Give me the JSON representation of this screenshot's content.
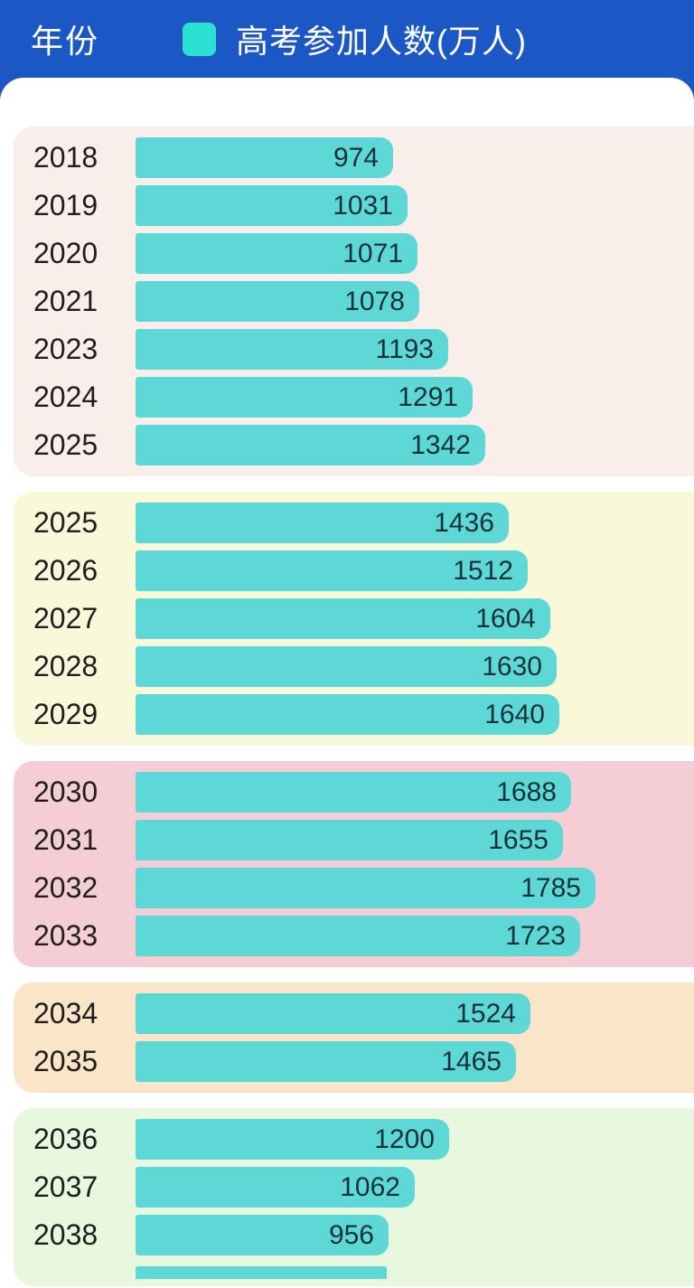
{
  "header": {
    "year_label": "年份",
    "series_label": "高考参加人数(万人)",
    "bg_color": "#1b58c5",
    "swatch_color": "#2de1d2"
  },
  "colors": {
    "bar": "#5ed8d6",
    "bar_value_text": "#15323a",
    "year_text": "#1e1e1e",
    "content_bg": "#ffffff"
  },
  "chart_data": {
    "type": "bar",
    "orientation": "horizontal",
    "title": "高考参加人数(万人)",
    "xlabel": "高考参加人数(万人)",
    "ylabel": "年份",
    "unit": "万人",
    "legend_position": "top-header",
    "grid": false,
    "value_labels": "inside-bar-right",
    "max_scale_value": 1785,
    "categories": [
      "2018",
      "2019",
      "2020",
      "2021",
      "2023",
      "2024",
      "2025",
      "2025",
      "2026",
      "2027",
      "2028",
      "2029",
      "2030",
      "2031",
      "2032",
      "2033",
      "2034",
      "2035",
      "2036",
      "2037",
      "2038"
    ],
    "values": [
      974,
      1031,
      1071,
      1078,
      1193,
      1291,
      1342,
      1436,
      1512,
      1604,
      1630,
      1640,
      1688,
      1655,
      1785,
      1723,
      1524,
      1465,
      1200,
      1062,
      956
    ],
    "groups": [
      {
        "bg_color": "#faeeea",
        "rows": [
          {
            "year": "2018",
            "value": 974
          },
          {
            "year": "2019",
            "value": 1031
          },
          {
            "year": "2020",
            "value": 1071
          },
          {
            "year": "2021",
            "value": 1078
          },
          {
            "year": "2023",
            "value": 1193
          },
          {
            "year": "2024",
            "value": 1291
          },
          {
            "year": "2025",
            "value": 1342
          }
        ]
      },
      {
        "bg_color": "#f9f8d8",
        "rows": [
          {
            "year": "2025",
            "value": 1436
          },
          {
            "year": "2026",
            "value": 1512
          },
          {
            "year": "2027",
            "value": 1604
          },
          {
            "year": "2028",
            "value": 1630
          },
          {
            "year": "2029",
            "value": 1640
          }
        ]
      },
      {
        "bg_color": "#f4ced4",
        "rows": [
          {
            "year": "2030",
            "value": 1688
          },
          {
            "year": "2031",
            "value": 1655
          },
          {
            "year": "2032",
            "value": 1785
          },
          {
            "year": "2033",
            "value": 1723
          }
        ]
      },
      {
        "bg_color": "#fbe5c8",
        "rows": [
          {
            "year": "2034",
            "value": 1524
          },
          {
            "year": "2035",
            "value": 1465
          }
        ]
      },
      {
        "bg_color": "#e7f8df",
        "rows": [
          {
            "year": "2036",
            "value": 1200
          },
          {
            "year": "2037",
            "value": 1062
          },
          {
            "year": "2038",
            "value": 956
          }
        ],
        "partial_bar": {
          "cut_off_at_bottom": true,
          "approx_value": 950
        }
      }
    ]
  }
}
